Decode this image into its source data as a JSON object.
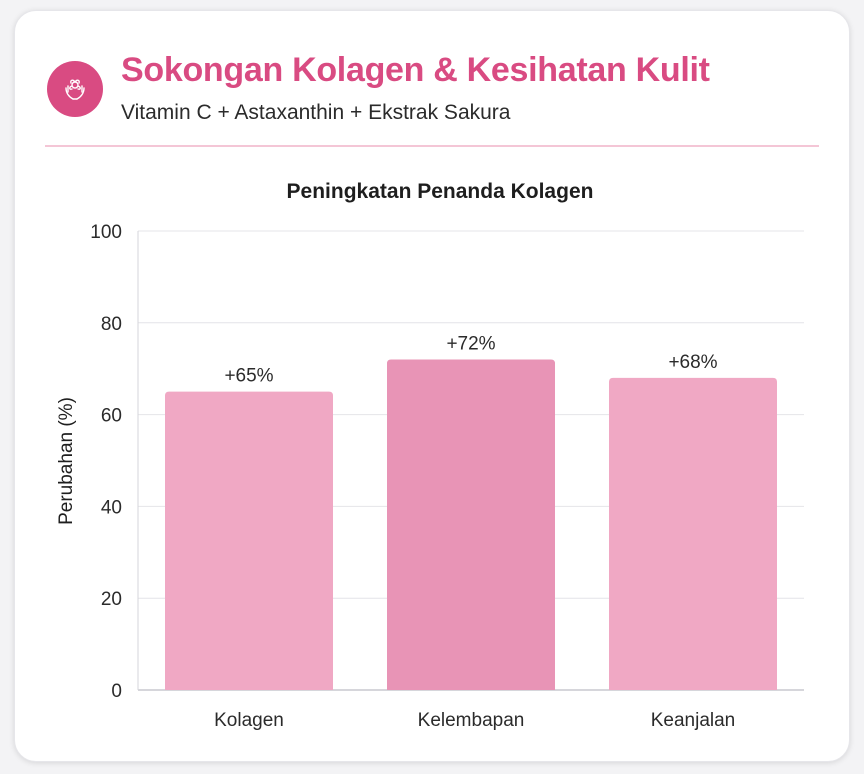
{
  "header": {
    "title": "Sokongan Kolagen & Kesihatan Kulit",
    "subtitle": "Vitamin C + Astaxanthin + Ekstrak Sakura",
    "icon": "flower-hands-icon"
  },
  "colors": {
    "accent": "#d94b82",
    "bar": "#f0a8c4",
    "bar_highlight": "#e894b6",
    "divider": "#f4c6d6",
    "grid": "#e4e4e8"
  },
  "chart_data": {
    "type": "bar",
    "title": "Peningkatan Penanda Kolagen",
    "xlabel": "",
    "ylabel": "Perubahan (%)",
    "categories": [
      "Kolagen",
      "Kelembapan",
      "Keanjalan"
    ],
    "values": [
      65,
      72,
      68
    ],
    "data_labels": [
      "+65%",
      "+72%",
      "+68%"
    ],
    "ylim": [
      0,
      100
    ],
    "yticks": [
      0,
      20,
      40,
      60,
      80,
      100
    ],
    "grid": true,
    "legend": "none"
  }
}
